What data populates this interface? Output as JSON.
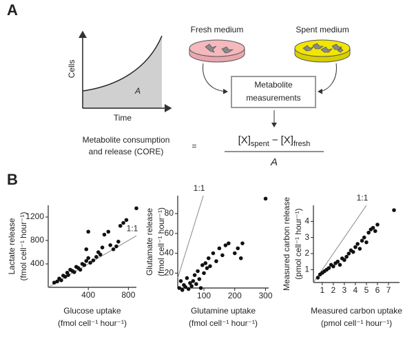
{
  "panel_labels": [
    "A",
    "B"
  ],
  "panel_a": {
    "growth_plot": {
      "y_label": "Cells",
      "x_label": "Time",
      "area_label": "A"
    },
    "fresh_label": "Fresh medium",
    "spent_label": "Spent medium",
    "measurement_box": [
      "Metabolite",
      "measurements"
    ],
    "core_label": [
      "Metabolite consumption",
      "and release (CORE)"
    ],
    "equals": "=",
    "formula": {
      "term1": "[X]",
      "sub1": "spent",
      "minus": "−",
      "term2": "[X]",
      "sub2": "fresh",
      "denominator": "A"
    }
  },
  "chart_data": [
    {
      "type": "scatter",
      "annotation": "1:1",
      "color": "#111111",
      "x_label": [
        "Glucose uptake",
        "(fmol cell⁻¹ hour⁻¹)"
      ],
      "y_label": [
        "Lactate release",
        "(fmol cell⁻¹ hour⁻¹)"
      ],
      "x": [
        60,
        90,
        110,
        130,
        150,
        170,
        190,
        200,
        220,
        240,
        260,
        280,
        300,
        320,
        340,
        360,
        380,
        380,
        400,
        400,
        420,
        450,
        480,
        500,
        520,
        540,
        560,
        600,
        620,
        650,
        680,
        700,
        720,
        750,
        780,
        880
      ],
      "y": [
        80,
        100,
        150,
        120,
        200,
        180,
        250,
        210,
        300,
        280,
        260,
        350,
        330,
        300,
        400,
        380,
        450,
        650,
        500,
        950,
        420,
        460,
        520,
        600,
        560,
        680,
        900,
        950,
        720,
        650,
        700,
        780,
        1050,
        1100,
        1150,
        1350
      ],
      "xlim": [
        0,
        880
      ],
      "ylim": [
        0,
        1400
      ],
      "xticks": [
        400,
        800
      ],
      "yticks": [
        400,
        800,
        1200
      ]
    },
    {
      "type": "scatter",
      "annotation": "1:1",
      "color": "#111111",
      "x_label": [
        "Glutamine uptake",
        "(fmol cell⁻¹ hour⁻¹)"
      ],
      "y_label": [
        "Glutamate release",
        "(fmol cell⁻¹ hour⁻¹)"
      ],
      "x": [
        20,
        25,
        30,
        35,
        40,
        45,
        50,
        55,
        60,
        65,
        70,
        75,
        80,
        85,
        90,
        95,
        100,
        105,
        110,
        115,
        120,
        130,
        140,
        150,
        160,
        170,
        180,
        200,
        210,
        220,
        225,
        300
      ],
      "y": [
        5,
        12,
        3,
        8,
        6,
        15,
        4,
        10,
        7,
        12,
        18,
        9,
        22,
        14,
        5,
        28,
        20,
        30,
        25,
        35,
        27,
        40,
        32,
        45,
        38,
        48,
        50,
        40,
        45,
        35,
        50,
        95
      ],
      "xlim": [
        15,
        310
      ],
      "ylim": [
        5,
        98
      ],
      "xticks": [
        100,
        200,
        300
      ],
      "yticks": [
        20,
        40,
        60,
        80
      ]
    },
    {
      "type": "scatter",
      "annotation": "1:1",
      "color": "#111111",
      "x_label": [
        "Measured carbon uptake",
        "(pmol cell⁻¹ hour⁻¹)"
      ],
      "y_label": [
        "Measured carbon release",
        "(pmol cell⁻¹ hour⁻¹)"
      ],
      "x": [
        0.6,
        0.8,
        1.0,
        1.2,
        1.4,
        1.6,
        1.8,
        2.0,
        2.2,
        2.4,
        2.6,
        2.8,
        3.0,
        3.2,
        3.4,
        3.6,
        3.8,
        4.0,
        4.2,
        4.4,
        4.6,
        4.8,
        5.0,
        5.2,
        5.4,
        5.6,
        5.8,
        6.0,
        7.5
      ],
      "y": [
        0.5,
        0.7,
        0.8,
        0.9,
        1.0,
        1.1,
        1.3,
        1.2,
        1.4,
        1.5,
        1.3,
        1.7,
        1.6,
        1.8,
        2.0,
        2.2,
        2.1,
        2.4,
        2.6,
        2.3,
        2.8,
        3.0,
        2.7,
        3.3,
        3.5,
        3.6,
        3.4,
        3.8,
        4.7
      ],
      "xlim": [
        0.2,
        8
      ],
      "ylim": [
        0.2,
        5
      ],
      "xticks": [
        1,
        2,
        3,
        4,
        5,
        6,
        7
      ],
      "yticks": [
        1,
        2,
        3,
        4
      ]
    }
  ]
}
